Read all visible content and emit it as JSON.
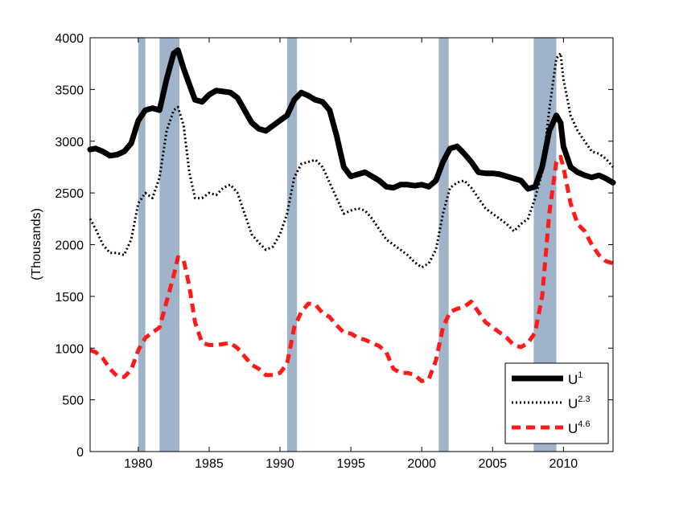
{
  "chart_data": {
    "type": "line",
    "title": "",
    "xlabel": "",
    "ylabel": "(Thousands)",
    "xlim": [
      1976.6,
      2013.5
    ],
    "ylim": [
      0,
      4000
    ],
    "x_ticks": [
      1980,
      1985,
      1990,
      1995,
      2000,
      2005,
      2010
    ],
    "y_ticks": [
      0,
      500,
      1000,
      1500,
      2000,
      2500,
      3000,
      3500,
      4000
    ],
    "grid": false,
    "legend_position": "bottom-right",
    "recession_shading_color": "#9fb3cb",
    "recessions": [
      [
        1980.0,
        1980.5
      ],
      [
        1981.5,
        1982.9
      ],
      [
        1990.5,
        1991.2
      ],
      [
        2001.2,
        2001.9
      ],
      [
        2007.9,
        2009.5
      ]
    ],
    "series": [
      {
        "name": "U",
        "superscript": "1",
        "style": "solid",
        "color": "#000000",
        "points": [
          [
            1976.6,
            2920
          ],
          [
            1977.0,
            2930
          ],
          [
            1977.5,
            2900
          ],
          [
            1978.0,
            2860
          ],
          [
            1978.5,
            2870
          ],
          [
            1979.0,
            2900
          ],
          [
            1979.5,
            2980
          ],
          [
            1980.0,
            3200
          ],
          [
            1980.5,
            3300
          ],
          [
            1981.0,
            3320
          ],
          [
            1981.5,
            3300
          ],
          [
            1982.0,
            3600
          ],
          [
            1982.5,
            3850
          ],
          [
            1982.8,
            3880
          ],
          [
            1983.2,
            3700
          ],
          [
            1983.6,
            3550
          ],
          [
            1984.0,
            3400
          ],
          [
            1984.5,
            3380
          ],
          [
            1985.0,
            3450
          ],
          [
            1985.5,
            3490
          ],
          [
            1986.0,
            3480
          ],
          [
            1986.5,
            3470
          ],
          [
            1987.0,
            3420
          ],
          [
            1987.5,
            3300
          ],
          [
            1988.0,
            3180
          ],
          [
            1988.5,
            3120
          ],
          [
            1989.0,
            3100
          ],
          [
            1989.5,
            3150
          ],
          [
            1990.0,
            3200
          ],
          [
            1990.5,
            3250
          ],
          [
            1991.0,
            3400
          ],
          [
            1991.5,
            3470
          ],
          [
            1992.0,
            3440
          ],
          [
            1992.5,
            3400
          ],
          [
            1993.0,
            3380
          ],
          [
            1993.5,
            3300
          ],
          [
            1994.0,
            3050
          ],
          [
            1994.5,
            2750
          ],
          [
            1995.0,
            2660
          ],
          [
            1995.5,
            2680
          ],
          [
            1996.0,
            2700
          ],
          [
            1996.5,
            2660
          ],
          [
            1997.0,
            2620
          ],
          [
            1997.5,
            2560
          ],
          [
            1998.0,
            2550
          ],
          [
            1998.5,
            2580
          ],
          [
            1999.0,
            2580
          ],
          [
            1999.5,
            2570
          ],
          [
            2000.0,
            2580
          ],
          [
            2000.5,
            2560
          ],
          [
            2001.0,
            2620
          ],
          [
            2001.5,
            2800
          ],
          [
            2002.0,
            2930
          ],
          [
            2002.5,
            2950
          ],
          [
            2003.0,
            2880
          ],
          [
            2003.5,
            2800
          ],
          [
            2004.0,
            2700
          ],
          [
            2004.5,
            2690
          ],
          [
            2005.0,
            2690
          ],
          [
            2005.5,
            2680
          ],
          [
            2006.0,
            2660
          ],
          [
            2006.5,
            2640
          ],
          [
            2007.0,
            2620
          ],
          [
            2007.5,
            2540
          ],
          [
            2008.0,
            2560
          ],
          [
            2008.5,
            2750
          ],
          [
            2009.0,
            3100
          ],
          [
            2009.5,
            3250
          ],
          [
            2009.8,
            3180
          ],
          [
            2010.0,
            2950
          ],
          [
            2010.5,
            2750
          ],
          [
            2011.0,
            2700
          ],
          [
            2011.5,
            2670
          ],
          [
            2012.0,
            2650
          ],
          [
            2012.5,
            2670
          ],
          [
            2013.0,
            2640
          ],
          [
            2013.5,
            2600
          ]
        ]
      },
      {
        "name": "U",
        "superscript": "2.3",
        "style": "dotted",
        "color": "#000000",
        "points": [
          [
            1976.6,
            2250
          ],
          [
            1977.0,
            2150
          ],
          [
            1977.5,
            2000
          ],
          [
            1978.0,
            1920
          ],
          [
            1978.5,
            1920
          ],
          [
            1979.0,
            1900
          ],
          [
            1979.5,
            2050
          ],
          [
            1980.0,
            2400
          ],
          [
            1980.5,
            2500
          ],
          [
            1981.0,
            2450
          ],
          [
            1981.5,
            2650
          ],
          [
            1982.0,
            3100
          ],
          [
            1982.5,
            3300
          ],
          [
            1982.8,
            3330
          ],
          [
            1983.2,
            3150
          ],
          [
            1983.6,
            2700
          ],
          [
            1984.0,
            2450
          ],
          [
            1984.5,
            2450
          ],
          [
            1985.0,
            2500
          ],
          [
            1985.5,
            2480
          ],
          [
            1986.0,
            2550
          ],
          [
            1986.5,
            2580
          ],
          [
            1987.0,
            2500
          ],
          [
            1987.5,
            2300
          ],
          [
            1988.0,
            2100
          ],
          [
            1988.5,
            2020
          ],
          [
            1989.0,
            1950
          ],
          [
            1989.5,
            1980
          ],
          [
            1990.0,
            2100
          ],
          [
            1990.5,
            2300
          ],
          [
            1991.0,
            2650
          ],
          [
            1991.5,
            2780
          ],
          [
            1992.0,
            2800
          ],
          [
            1992.5,
            2820
          ],
          [
            1993.0,
            2750
          ],
          [
            1993.5,
            2600
          ],
          [
            1994.0,
            2450
          ],
          [
            1994.5,
            2300
          ],
          [
            1995.0,
            2330
          ],
          [
            1995.5,
            2350
          ],
          [
            1996.0,
            2330
          ],
          [
            1996.5,
            2250
          ],
          [
            1997.0,
            2150
          ],
          [
            1997.5,
            2050
          ],
          [
            1998.0,
            2000
          ],
          [
            1998.5,
            1950
          ],
          [
            1999.0,
            1900
          ],
          [
            1999.5,
            1830
          ],
          [
            2000.0,
            1780
          ],
          [
            2000.5,
            1820
          ],
          [
            2001.0,
            1950
          ],
          [
            2001.5,
            2300
          ],
          [
            2002.0,
            2550
          ],
          [
            2002.5,
            2600
          ],
          [
            2003.0,
            2620
          ],
          [
            2003.5,
            2550
          ],
          [
            2004.0,
            2450
          ],
          [
            2004.5,
            2350
          ],
          [
            2005.0,
            2300
          ],
          [
            2005.5,
            2250
          ],
          [
            2006.0,
            2200
          ],
          [
            2006.5,
            2130
          ],
          [
            2007.0,
            2200
          ],
          [
            2007.5,
            2250
          ],
          [
            2008.0,
            2450
          ],
          [
            2008.5,
            2700
          ],
          [
            2009.0,
            3300
          ],
          [
            2009.5,
            3800
          ],
          [
            2009.8,
            3850
          ],
          [
            2010.0,
            3600
          ],
          [
            2010.5,
            3250
          ],
          [
            2011.0,
            3100
          ],
          [
            2011.5,
            3000
          ],
          [
            2012.0,
            2900
          ],
          [
            2012.5,
            2880
          ],
          [
            2013.0,
            2830
          ],
          [
            2013.5,
            2750
          ]
        ]
      },
      {
        "name": "U",
        "superscript": "4.6",
        "style": "dashed",
        "color": "#ff1a1a",
        "points": [
          [
            1976.6,
            980
          ],
          [
            1977.0,
            960
          ],
          [
            1977.5,
            900
          ],
          [
            1978.0,
            800
          ],
          [
            1978.5,
            730
          ],
          [
            1979.0,
            720
          ],
          [
            1979.5,
            790
          ],
          [
            1980.0,
            980
          ],
          [
            1980.5,
            1100
          ],
          [
            1981.0,
            1150
          ],
          [
            1981.5,
            1200
          ],
          [
            1982.0,
            1450
          ],
          [
            1982.5,
            1700
          ],
          [
            1982.8,
            1880
          ],
          [
            1983.2,
            1850
          ],
          [
            1983.6,
            1600
          ],
          [
            1984.0,
            1250
          ],
          [
            1984.5,
            1050
          ],
          [
            1985.0,
            1030
          ],
          [
            1985.5,
            1030
          ],
          [
            1986.0,
            1040
          ],
          [
            1986.5,
            1050
          ],
          [
            1987.0,
            1000
          ],
          [
            1987.5,
            920
          ],
          [
            1988.0,
            840
          ],
          [
            1988.5,
            800
          ],
          [
            1989.0,
            740
          ],
          [
            1989.5,
            740
          ],
          [
            1990.0,
            760
          ],
          [
            1990.5,
            850
          ],
          [
            1991.0,
            1200
          ],
          [
            1991.5,
            1350
          ],
          [
            1992.0,
            1430
          ],
          [
            1992.5,
            1420
          ],
          [
            1993.0,
            1340
          ],
          [
            1993.5,
            1300
          ],
          [
            1994.0,
            1220
          ],
          [
            1994.5,
            1150
          ],
          [
            1995.0,
            1140
          ],
          [
            1995.5,
            1100
          ],
          [
            1996.0,
            1080
          ],
          [
            1996.5,
            1050
          ],
          [
            1997.0,
            1020
          ],
          [
            1997.5,
            960
          ],
          [
            1998.0,
            800
          ],
          [
            1998.5,
            760
          ],
          [
            1999.0,
            760
          ],
          [
            1999.5,
            740
          ],
          [
            2000.0,
            680
          ],
          [
            2000.5,
            700
          ],
          [
            2001.0,
            880
          ],
          [
            2001.5,
            1200
          ],
          [
            2002.0,
            1350
          ],
          [
            2002.5,
            1380
          ],
          [
            2003.0,
            1400
          ],
          [
            2003.5,
            1450
          ],
          [
            2004.0,
            1350
          ],
          [
            2004.5,
            1250
          ],
          [
            2005.0,
            1200
          ],
          [
            2005.5,
            1150
          ],
          [
            2006.0,
            1100
          ],
          [
            2006.5,
            1030
          ],
          [
            2007.0,
            1010
          ],
          [
            2007.5,
            1050
          ],
          [
            2008.0,
            1150
          ],
          [
            2008.5,
            1500
          ],
          [
            2009.0,
            2300
          ],
          [
            2009.5,
            2800
          ],
          [
            2009.8,
            2850
          ],
          [
            2010.0,
            2750
          ],
          [
            2010.5,
            2400
          ],
          [
            2011.0,
            2200
          ],
          [
            2011.5,
            2130
          ],
          [
            2012.0,
            2000
          ],
          [
            2012.5,
            1900
          ],
          [
            2013.0,
            1840
          ],
          [
            2013.5,
            1820
          ]
        ]
      }
    ]
  }
}
